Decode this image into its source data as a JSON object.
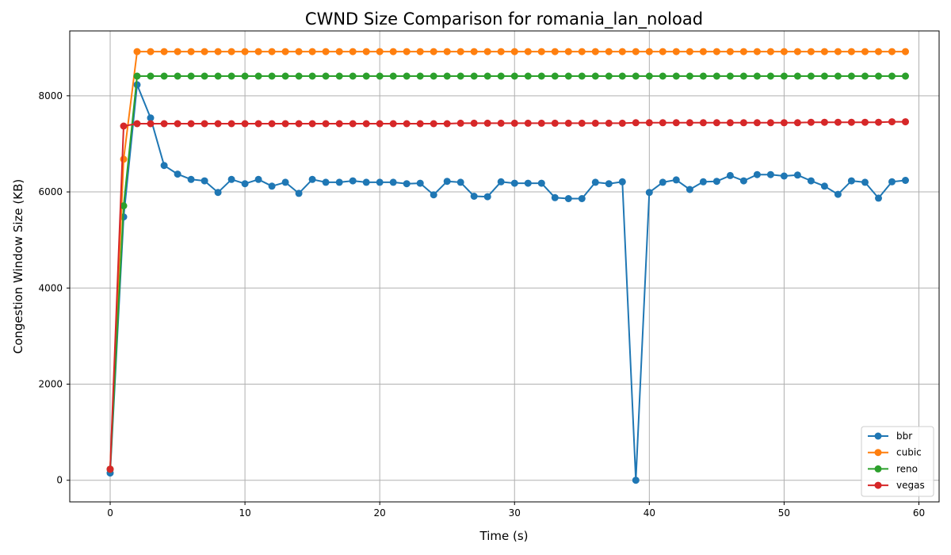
{
  "chart_data": {
    "type": "line",
    "title": "CWND Size Comparison for romania_lan_noload",
    "xlabel": "Time (s)",
    "ylabel": "Congestion Window Size (KB)",
    "xlim": [
      -3,
      61.5
    ],
    "ylim": [
      -450,
      9350
    ],
    "xticks": [
      0,
      10,
      20,
      30,
      40,
      50,
      60
    ],
    "yticks": [
      0,
      2000,
      4000,
      6000,
      8000
    ],
    "grid": true,
    "legend_position": "lower right",
    "x": [
      0,
      1,
      2,
      3,
      4,
      5,
      6,
      7,
      8,
      9,
      10,
      11,
      12,
      13,
      14,
      15,
      16,
      17,
      18,
      19,
      20,
      21,
      22,
      23,
      24,
      25,
      26,
      27,
      28,
      29,
      30,
      31,
      32,
      33,
      34,
      35,
      36,
      37,
      38,
      39,
      40,
      41,
      42,
      43,
      44,
      45,
      46,
      47,
      48,
      49,
      50,
      51,
      52,
      53,
      54,
      55,
      56,
      57,
      58,
      59
    ],
    "series": [
      {
        "name": "bbr",
        "color": "#1f77b4",
        "values": [
          150,
          5480,
          8230,
          7540,
          6550,
          6370,
          6260,
          6230,
          5990,
          6260,
          6170,
          6260,
          6120,
          6200,
          5970,
          6260,
          6200,
          6200,
          6230,
          6200,
          6200,
          6200,
          6170,
          6180,
          5940,
          6220,
          6200,
          5910,
          5900,
          6210,
          6180,
          6180,
          6180,
          5880,
          5860,
          5860,
          6200,
          6170,
          6210,
          0,
          5990,
          6200,
          6250,
          6050,
          6210,
          6220,
          6340,
          6230,
          6360,
          6360,
          6330,
          6350,
          6230,
          6120,
          5950,
          6230,
          6200,
          5870,
          6210,
          6240
        ]
      },
      {
        "name": "cubic",
        "color": "#ff7f0e",
        "values": [
          230,
          6680,
          8920,
          8920,
          8920,
          8920,
          8920,
          8920,
          8920,
          8920,
          8920,
          8920,
          8920,
          8920,
          8920,
          8920,
          8920,
          8920,
          8920,
          8920,
          8920,
          8920,
          8920,
          8920,
          8920,
          8920,
          8920,
          8920,
          8920,
          8920,
          8920,
          8920,
          8920,
          8920,
          8920,
          8920,
          8920,
          8920,
          8920,
          8920,
          8920,
          8920,
          8920,
          8920,
          8920,
          8920,
          8920,
          8920,
          8920,
          8920,
          8920,
          8920,
          8920,
          8920,
          8920,
          8920,
          8920,
          8920,
          8920,
          8920
        ]
      },
      {
        "name": "reno",
        "color": "#2ca02c",
        "values": [
          230,
          5710,
          8410,
          8410,
          8410,
          8410,
          8410,
          8410,
          8410,
          8410,
          8410,
          8410,
          8410,
          8410,
          8410,
          8410,
          8410,
          8410,
          8410,
          8410,
          8410,
          8410,
          8410,
          8410,
          8410,
          8410,
          8410,
          8410,
          8410,
          8410,
          8410,
          8410,
          8410,
          8410,
          8410,
          8410,
          8410,
          8410,
          8410,
          8410,
          8410,
          8410,
          8410,
          8410,
          8410,
          8410,
          8410,
          8410,
          8410,
          8410,
          8410,
          8410,
          8410,
          8410,
          8410,
          8410,
          8410,
          8410,
          8410,
          8410
        ]
      },
      {
        "name": "vegas",
        "color": "#d62728",
        "values": [
          230,
          7370,
          7420,
          7420,
          7420,
          7420,
          7420,
          7420,
          7420,
          7420,
          7420,
          7420,
          7420,
          7420,
          7420,
          7420,
          7420,
          7420,
          7420,
          7420,
          7420,
          7420,
          7420,
          7420,
          7420,
          7420,
          7430,
          7430,
          7430,
          7430,
          7430,
          7430,
          7430,
          7430,
          7430,
          7430,
          7430,
          7430,
          7430,
          7440,
          7440,
          7440,
          7440,
          7440,
          7440,
          7440,
          7440,
          7440,
          7440,
          7440,
          7440,
          7440,
          7450,
          7450,
          7450,
          7450,
          7450,
          7450,
          7460,
          7460
        ]
      }
    ]
  }
}
